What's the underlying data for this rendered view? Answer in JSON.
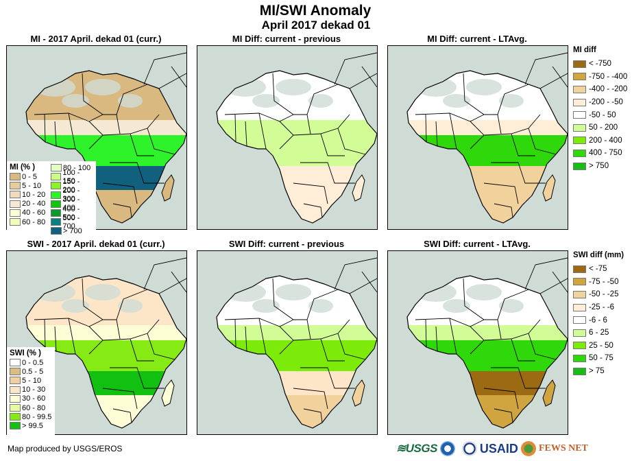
{
  "header": {
    "title": "MI/SWI Anomaly",
    "subtitle": "April 2017 dekad 01"
  },
  "panels": [
    {
      "id": "mi-current",
      "title": "MI - 2017 April. dekad 01 (curr.)",
      "variable": "MI",
      "kind": "current"
    },
    {
      "id": "mi-diff-previous",
      "title": "MI Diff: current - previous",
      "variable": "MI",
      "kind": "diff-previous"
    },
    {
      "id": "mi-diff-ltavg",
      "title": "MI Diff: current - LTAvg.",
      "variable": "MI",
      "kind": "diff-ltavg"
    },
    {
      "id": "swi-current",
      "title": "SWI - 2017 April. dekad 01 (curr.)",
      "variable": "SWI",
      "kind": "current"
    },
    {
      "id": "swi-diff-previous",
      "title": "SWI Diff: current - previous",
      "variable": "SWI",
      "kind": "diff-previous"
    },
    {
      "id": "swi-diff-ltavg",
      "title": "SWI Diff: current - LTAvg.",
      "variable": "SWI",
      "kind": "diff-ltavg"
    }
  ],
  "legends": {
    "mi_current": {
      "title": "MI (% )",
      "items": [
        {
          "label": "0 - 5",
          "color": "#d9b97f"
        },
        {
          "label": "5 - 10",
          "color": "#e6cc9a"
        },
        {
          "label": "10 - 20",
          "color": "#efdcbc"
        },
        {
          "label": "20 - 40",
          "color": "#f6e9d3"
        },
        {
          "label": "40 - 60",
          "color": "#fdfdd6"
        },
        {
          "label": "60 - 80",
          "color": "#effdb8"
        },
        {
          "label": "80 - 100",
          "color": "#e3fdc4"
        },
        {
          "label": "100 - 150",
          "color": "#c8fb8a"
        },
        {
          "label": "150 - 200",
          "color": "#8af22a"
        },
        {
          "label": "200 - 300",
          "color": "#2ef22a"
        },
        {
          "label": "300 - 400",
          "color": "#12c312"
        },
        {
          "label": "400 - 500",
          "color": "#0b9a2a"
        },
        {
          "label": "500 - 700",
          "color": "#0a8080"
        },
        {
          "label": "> 700",
          "color": "#10607e"
        }
      ]
    },
    "mi_diff": {
      "title": "MI diff",
      "items": [
        {
          "label": "< -750",
          "color": "#9c6a12"
        },
        {
          "label": "-750 - -400",
          "color": "#d0a540"
        },
        {
          "label": "-400 - -200",
          "color": "#f2d29c"
        },
        {
          "label": "-200 - -50",
          "color": "#feeed8"
        },
        {
          "label": "-50 - 50",
          "color": "#ffffff"
        },
        {
          "label": "50 - 200",
          "color": "#d2fd96"
        },
        {
          "label": "200 - 400",
          "color": "#7deb0a"
        },
        {
          "label": "400 - 750",
          "color": "#2ed80a"
        },
        {
          "label": "> 750",
          "color": "#14be14"
        }
      ]
    },
    "swi_current": {
      "title": "SWI (% )",
      "items": [
        {
          "label": "0 - 0.5",
          "color": "#ffffff"
        },
        {
          "label": "0.5 - 5",
          "color": "#dcbc80"
        },
        {
          "label": "5 - 10",
          "color": "#f0d0a0"
        },
        {
          "label": "10 - 30",
          "color": "#fde6c8"
        },
        {
          "label": "30 - 60",
          "color": "#fdfdd6"
        },
        {
          "label": "60 - 80",
          "color": "#e4fda4"
        },
        {
          "label": "80 - 99.5",
          "color": "#86ea14"
        },
        {
          "label": "> 99.5",
          "color": "#12c012"
        }
      ]
    },
    "swi_diff": {
      "title": "SWI diff (mm)",
      "items": [
        {
          "label": "< -75",
          "color": "#9c6a12"
        },
        {
          "label": "-75 - -50",
          "color": "#d0a540"
        },
        {
          "label": "-50 - -25",
          "color": "#f2d29c"
        },
        {
          "label": "-25 - -6",
          "color": "#feeed8"
        },
        {
          "label": "-6 - 6",
          "color": "#ffffff"
        },
        {
          "label": "6 - 25",
          "color": "#d2fd96"
        },
        {
          "label": "25 - 50",
          "color": "#7deb0a"
        },
        {
          "label": "50 - 75",
          "color": "#2ed80a"
        },
        {
          "label": "> 75",
          "color": "#14be14"
        }
      ]
    }
  },
  "map_colors": {
    "ocean": "#cfdcd6",
    "desert_nodata": "#cfdcd6",
    "border": "#000000"
  },
  "footer": {
    "credit": "Map produced by USGS/EROS",
    "logos": [
      {
        "name": "usgs",
        "text": "≋USGS"
      },
      {
        "name": "noaa",
        "text": ""
      },
      {
        "name": "usaid-seal",
        "text": ""
      },
      {
        "name": "usaid",
        "text": "USAID"
      },
      {
        "name": "fewsnet",
        "text": "FEWS NET"
      }
    ]
  }
}
